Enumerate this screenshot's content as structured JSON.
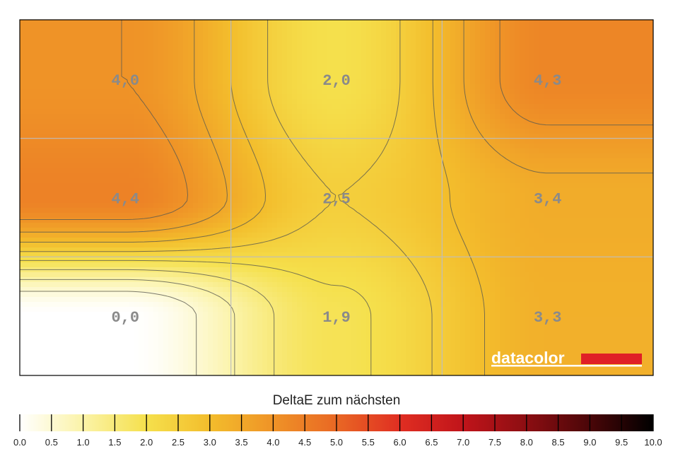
{
  "chart_data": {
    "type": "heatmap",
    "rows": 3,
    "cols": 3,
    "values": [
      [
        4.0,
        2.0,
        4.3
      ],
      [
        4.4,
        2.5,
        3.4
      ],
      [
        0.0,
        1.9,
        3.3
      ]
    ],
    "cell_labels": [
      [
        "4,0",
        "2,0",
        "4,3"
      ],
      [
        "4,4",
        "2,5",
        "3,4"
      ],
      [
        "0,0",
        "1,9",
        "3,3"
      ]
    ],
    "grid": true,
    "contours": true,
    "legend": {
      "title": "DeltaE zum nächsten",
      "min": 0.0,
      "max": 10.0,
      "step": 0.5,
      "tick_labels": [
        "0.0",
        "0.5",
        "1.0",
        "1.5",
        "2.0",
        "2.5",
        "3.0",
        "3.5",
        "4.0",
        "4.5",
        "5.0",
        "5.5",
        "6.0",
        "6.5",
        "7.0",
        "7.5",
        "8.0",
        "8.5",
        "9.0",
        "9.5",
        "10.0"
      ],
      "placement": "bottom"
    },
    "color_stops": [
      {
        "v": 0.0,
        "color": "#ffffff"
      },
      {
        "v": 1.0,
        "color": "#fbf3a8"
      },
      {
        "v": 2.0,
        "color": "#f5e04c"
      },
      {
        "v": 3.0,
        "color": "#f3bd2c"
      },
      {
        "v": 4.0,
        "color": "#ef9327"
      },
      {
        "v": 5.0,
        "color": "#e96824"
      },
      {
        "v": 6.0,
        "color": "#e02e22"
      },
      {
        "v": 7.0,
        "color": "#c0141a"
      },
      {
        "v": 8.0,
        "color": "#8c0e12"
      },
      {
        "v": 9.0,
        "color": "#4a0608"
      },
      {
        "v": 10.0,
        "color": "#000000"
      }
    ]
  },
  "logo": {
    "text": "datacolor",
    "bar_color": "#e01f26"
  }
}
